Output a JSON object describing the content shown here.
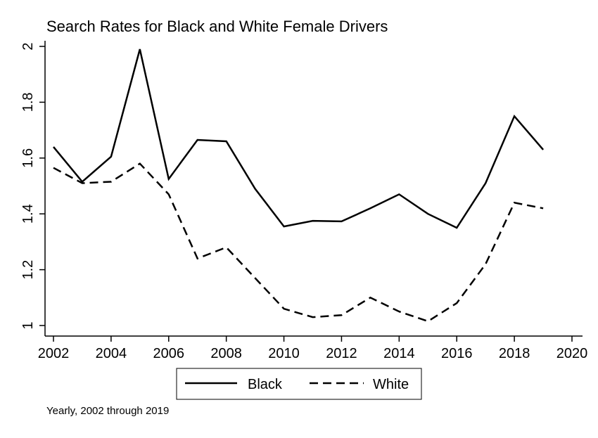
{
  "chart_data": {
    "type": "line",
    "title": "Search Rates for Black and White Female Drivers",
    "xlabel": "",
    "ylabel": "",
    "note": "Yearly, 2002 through 2019",
    "xlim": [
      2002,
      2020
    ],
    "ylim": [
      1,
      2
    ],
    "x_ticks": [
      2002,
      2004,
      2006,
      2008,
      2010,
      2012,
      2014,
      2016,
      2018,
      2020
    ],
    "y_ticks": [
      1,
      1.2,
      1.4,
      1.6,
      1.8,
      2
    ],
    "x_tick_labels": [
      "2002",
      "2004",
      "2006",
      "2008",
      "2010",
      "2012",
      "2014",
      "2016",
      "2018",
      "2020"
    ],
    "y_tick_labels": [
      "1",
      "1.2",
      "1.4",
      "1.6",
      "1.8",
      "2"
    ],
    "grid": false,
    "legend_position": "bottom",
    "x": [
      2002,
      2003,
      2004,
      2005,
      2006,
      2007,
      2008,
      2009,
      2010,
      2011,
      2012,
      2013,
      2014,
      2015,
      2016,
      2017,
      2018,
      2019
    ],
    "series": [
      {
        "name": "Black",
        "style": "solid",
        "color": "#000000",
        "values": [
          1.64,
          1.515,
          1.605,
          1.99,
          1.525,
          1.665,
          1.66,
          1.49,
          1.355,
          1.375,
          1.373,
          1.42,
          1.47,
          1.4,
          1.35,
          1.51,
          1.75,
          1.63
        ]
      },
      {
        "name": "White",
        "style": "dashed",
        "color": "#000000",
        "values": [
          1.565,
          1.51,
          1.515,
          1.58,
          1.47,
          1.24,
          1.28,
          1.17,
          1.06,
          1.03,
          1.037,
          1.1,
          1.05,
          1.015,
          1.08,
          1.22,
          1.44,
          1.42
        ]
      }
    ]
  }
}
